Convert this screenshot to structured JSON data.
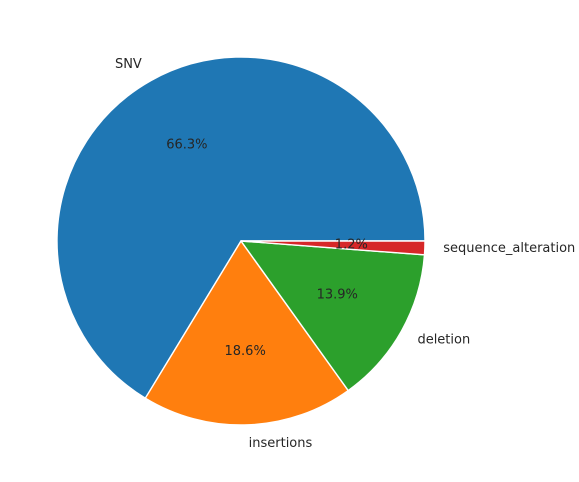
{
  "chart_data": {
    "type": "pie",
    "title": "",
    "start_angle_deg": 0,
    "direction": "counterclockwise",
    "slices": [
      {
        "label": "SNV",
        "value": 66.3,
        "pct_text": "66.3%",
        "color": "#1f77b4"
      },
      {
        "label": "insertions",
        "value": 18.6,
        "pct_text": "18.6%",
        "color": "#ff7f0e"
      },
      {
        "label": "deletion",
        "value": 13.9,
        "pct_text": "13.9%",
        "color": "#2ca02c"
      },
      {
        "label": "sequence_alteration",
        "value": 1.2,
        "pct_text": "1.2%",
        "color": "#d62728"
      }
    ]
  }
}
